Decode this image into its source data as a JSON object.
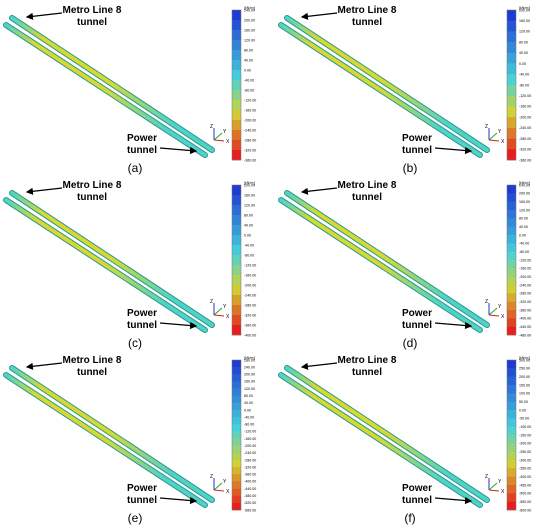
{
  "figure": {
    "panels": [
      {
        "letter": "(a)",
        "top_label": [
          "Metro Line 8",
          "tunnel"
        ],
        "bottom_label": [
          "Power",
          "tunnel"
        ],
        "legend_unit": "[kN/m²]",
        "legend_values": [
          "240.00",
          "200.00",
          "160.00",
          "120.00",
          "80.00",
          "40.00",
          "0.00",
          "-40.00",
          "-80.00",
          "-120.00",
          "-160.00",
          "-200.00",
          "-240.00",
          "-280.00",
          "-320.00",
          "-360.00"
        ],
        "axes": {
          "z": "Z",
          "y": "Y",
          "x": "X"
        }
      },
      {
        "letter": "(b)",
        "top_label": [
          "Metro Line 8",
          "tunnel"
        ],
        "bottom_label": [
          "Power",
          "tunnel"
        ],
        "legend_unit": "[kN/m²]",
        "legend_values": [
          "200.00",
          "160.00",
          "120.00",
          "80.00",
          "40.00",
          "0.00",
          "-40.00",
          "-80.00",
          "-120.00",
          "-160.00",
          "-200.00",
          "-240.00",
          "-280.00",
          "-320.00",
          "-360.00"
        ],
        "axes": {
          "z": "Z",
          "y": "Y",
          "x": "X"
        }
      },
      {
        "letter": "(c)",
        "top_label": [
          "Metro Line 8",
          "tunnel"
        ],
        "bottom_label": [
          "Power",
          "tunnel"
        ],
        "legend_unit": "[kN/m²]",
        "legend_values": [
          "200.00",
          "160.00",
          "120.00",
          "80.00",
          "40.00",
          "0.00",
          "-40.00",
          "-80.00",
          "-120.00",
          "-160.00",
          "-200.00",
          "-240.00",
          "-280.00",
          "-320.00",
          "-360.00",
          "-400.00"
        ],
        "axes": {
          "z": "Z",
          "y": "Y",
          "x": "X"
        }
      },
      {
        "letter": "(d)",
        "top_label": [
          "Metro Line 8",
          "tunnel"
        ],
        "bottom_label": [
          "Power",
          "tunnel"
        ],
        "legend_unit": "[kN/m²]",
        "legend_values": [
          "240.00",
          "200.00",
          "160.00",
          "120.00",
          "80.00",
          "40.00",
          "0.00",
          "-40.00",
          "-80.00",
          "-120.00",
          "-160.00",
          "-200.00",
          "-240.00",
          "-280.00",
          "-320.00",
          "-360.00",
          "-400.00",
          "-440.00",
          "-480.00"
        ],
        "axes": {
          "z": "Z",
          "y": "Y",
          "x": "X"
        }
      },
      {
        "letter": "(e)",
        "top_label": [
          "Metro Line 8",
          "tunnel"
        ],
        "bottom_label": [
          "Power",
          "tunnel"
        ],
        "legend_unit": "[kN/m²]",
        "legend_values": [
          "280.00",
          "240.00",
          "200.00",
          "160.00",
          "120.00",
          "80.00",
          "40.00",
          "0.00",
          "-40.00",
          "-80.00",
          "-120.00",
          "-160.00",
          "-200.00",
          "-240.00",
          "-280.00",
          "-320.00",
          "-360.00",
          "-400.00",
          "-440.00",
          "-480.00",
          "-520.00",
          "-560.00"
        ],
        "axes": {
          "z": "Z",
          "y": "Y",
          "x": "X"
        }
      },
      {
        "letter": "(f)",
        "top_label": [
          "Metro Line 8",
          "tunnel"
        ],
        "bottom_label": [
          "Power",
          "tunnel"
        ],
        "legend_unit": "[kN/m²]",
        "legend_values": [
          "300.00",
          "250.00",
          "200.00",
          "150.00",
          "100.00",
          "50.00",
          "0.00",
          "-50.00",
          "-100.00",
          "-150.00",
          "-200.00",
          "-250.00",
          "-300.00",
          "-350.00",
          "-400.00",
          "-450.00",
          "-500.00",
          "-550.00",
          "-600.00"
        ],
        "axes": {
          "z": "Z",
          "y": "Y",
          "x": "X"
        }
      }
    ],
    "colors": {
      "tunnel_body": "#4fd3c8",
      "tunnel_highlight": "#d8d830",
      "tunnel_edge": "#2a9a90",
      "legend_top": "#1e3cd2",
      "legend_mid": "#46d2dc",
      "legend_low": "#d2d232",
      "legend_bottom": "#e61e1e"
    }
  }
}
